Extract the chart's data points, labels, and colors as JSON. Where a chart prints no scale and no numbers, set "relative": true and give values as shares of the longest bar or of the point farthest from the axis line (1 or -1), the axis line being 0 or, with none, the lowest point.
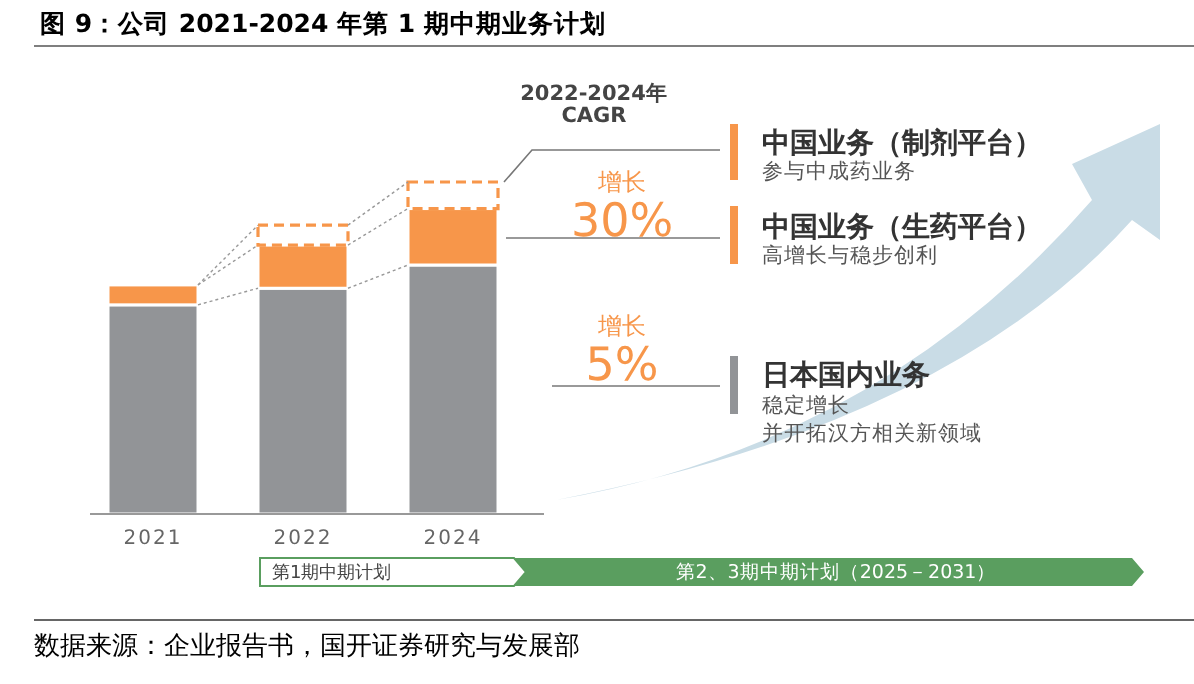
{
  "chart_data": {
    "type": "bar",
    "stacked": true,
    "relative": true,
    "title": "图 9：公司 2021-2024 年第 1 期中期业务计划",
    "categories": [
      "2021",
      "2022",
      "2024"
    ],
    "series": [
      {
        "color": "#929497",
        "values": [
          0.63,
          0.68,
          0.75
        ]
      },
      {
        "color": "#f7964a",
        "values": [
          0.06,
          0.13,
          0.17
        ]
      },
      {
        "color": "#f7964a",
        "line_style": "dashed",
        "values": [
          null,
          0.06,
          0.08
        ]
      }
    ],
    "annotations": [
      "2022-2024年",
      "CAGR",
      "增长",
      "30%",
      "增长",
      "5%",
      "中国业务（制剂平台）",
      "参与中成药业务",
      "中国业务（生药平台）",
      "高增长与稳步创利",
      "日本国内业务",
      "稳定增长",
      "并开拓汉方相关新领域",
      "第1期中期计划",
      "第2、3期中期计划（2025－2031）",
      "数据来源：企业报告书，国开证券研究与发展部"
    ]
  }
}
